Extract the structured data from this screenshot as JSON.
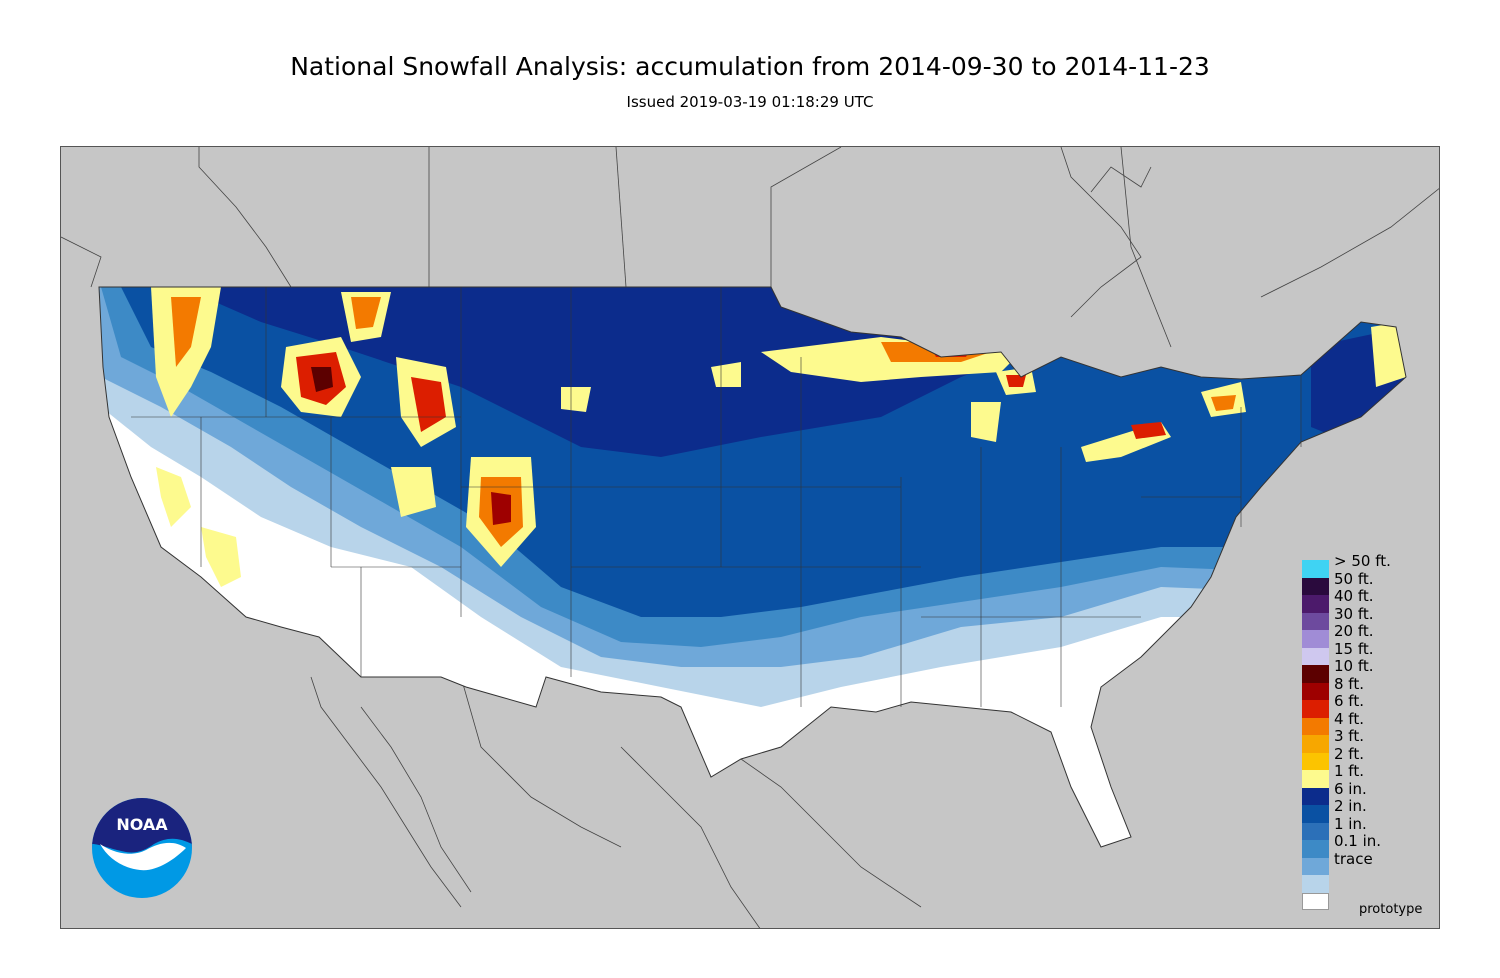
{
  "title": "National Snowfall Analysis: accumulation from 2014-09-30 to 2014-11-23",
  "subtitle": "Issued 2019-03-19 01:18:29 UTC",
  "watermark": "prototype",
  "logo": {
    "text": "NOAA",
    "icon": "noaa-logo-icon"
  },
  "legend": [
    {
      "label": "> 50 ft.",
      "color": "#3fd3f3"
    },
    {
      "label": "50 ft.",
      "color": "#2a0a3d"
    },
    {
      "label": "40 ft.",
      "color": "#4c1a6b"
    },
    {
      "label": "30 ft.",
      "color": "#6d4a9e"
    },
    {
      "label": "20 ft.",
      "color": "#a08cd6"
    },
    {
      "label": "15 ft.",
      "color": "#cfc8ef"
    },
    {
      "label": "10 ft.",
      "color": "#5c0000"
    },
    {
      "label": "8 ft.",
      "color": "#9e0000"
    },
    {
      "label": "6 ft.",
      "color": "#dc1e00"
    },
    {
      "label": "4 ft.",
      "color": "#f37a00"
    },
    {
      "label": "3 ft.",
      "color": "#f7a700"
    },
    {
      "label": "2 ft.",
      "color": "#fcc400"
    },
    {
      "label": "1 ft.",
      "color": "#fdfa8e"
    },
    {
      "label": "6 in.",
      "color": "#0c2c8c"
    },
    {
      "label": "2 in.",
      "color": "#0a51a3"
    },
    {
      "label": "1 in.",
      "color": "#2c70b8"
    },
    {
      "label": "0.1 in.",
      "color": "#3d8ac6"
    },
    {
      "label": "trace",
      "color": "#6fa8d9"
    },
    {
      "label": "",
      "color": "#b8d4ea"
    },
    {
      "label": "",
      "color": "#ffffff"
    }
  ]
}
